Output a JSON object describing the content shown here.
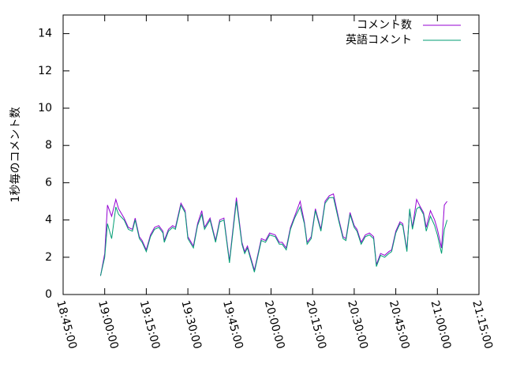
{
  "chart_data": {
    "type": "line",
    "y_label": "1秒毎のコメント数",
    "x": [
      "18:58:30",
      "19:00:00",
      "19:01:00",
      "19:02:30",
      "19:04:00",
      "19:05:00",
      "19:07:00",
      "19:08:30",
      "19:10:00",
      "19:11:00",
      "19:12:30",
      "19:13:30",
      "19:15:00",
      "19:16:30",
      "19:18:00",
      "19:19:30",
      "19:21:00",
      "19:21:30",
      "19:23:00",
      "19:24:30",
      "19:25:30",
      "19:27:30",
      "19:29:00",
      "19:30:00",
      "19:32:00",
      "19:33:30",
      "19:35:00",
      "19:36:00",
      "19:38:00",
      "19:40:00",
      "19:41:30",
      "19:43:00",
      "19:45:00",
      "19:47:30",
      "19:49:30",
      "19:50:30",
      "19:51:30",
      "19:54:00",
      "19:56:30",
      "19:58:00",
      "19:59:30",
      "20:01:30",
      "20:03:00",
      "20:04:00",
      "20:05:30",
      "20:07:00",
      "20:08:30",
      "20:10:30",
      "20:12:00",
      "20:13:00",
      "20:14:30",
      "20:16:00",
      "20:18:00",
      "20:19:30",
      "20:21:00",
      "20:22:30",
      "20:24:30",
      "20:26:00",
      "20:27:00",
      "20:28:30",
      "20:30:00",
      "20:31:00",
      "20:32:30",
      "20:34:00",
      "20:35:30",
      "20:37:00",
      "20:38:00",
      "20:39:30",
      "20:41:00",
      "20:42:30",
      "20:43:30",
      "20:45:00",
      "20:46:30",
      "20:47:30",
      "20:49:00",
      "20:50:00",
      "20:51:00",
      "20:52:30",
      "20:53:30",
      "20:55:00",
      "20:56:00",
      "20:57:30",
      "20:59:00",
      "21:00:00",
      "21:01:30",
      "21:02:30",
      "21:03:30"
    ],
    "series": [
      {
        "name": "コメント数",
        "color": "#9400d3",
        "values": [
          1.0,
          2.2,
          4.8,
          4.2,
          5.1,
          4.6,
          4.1,
          3.6,
          3.5,
          4.1,
          3.1,
          2.9,
          2.4,
          3.2,
          3.6,
          3.7,
          3.4,
          2.9,
          3.5,
          3.7,
          3.6,
          4.9,
          4.5,
          3.1,
          2.6,
          3.8,
          4.5,
          3.6,
          4.1,
          2.9,
          4.0,
          4.1,
          1.8,
          5.2,
          2.8,
          2.3,
          2.6,
          1.3,
          3.0,
          2.9,
          3.3,
          3.2,
          2.8,
          2.8,
          2.5,
          3.6,
          4.2,
          5.0,
          3.9,
          2.8,
          3.1,
          4.6,
          3.5,
          5.0,
          5.3,
          5.4,
          4.0,
          3.1,
          3.0,
          4.4,
          3.7,
          3.5,
          2.8,
          3.2,
          3.3,
          3.1,
          1.6,
          2.2,
          2.1,
          2.3,
          2.4,
          3.4,
          3.9,
          3.8,
          2.4,
          4.5,
          3.6,
          5.1,
          4.8,
          4.4,
          3.6,
          4.5,
          4.0,
          3.5,
          2.5,
          4.8,
          5.0
        ]
      },
      {
        "name": "英語コメント",
        "color": "#009e73",
        "values": [
          1.0,
          2.0,
          3.8,
          3.0,
          4.7,
          4.3,
          4.0,
          3.5,
          3.4,
          4.0,
          3.0,
          2.8,
          2.3,
          3.1,
          3.5,
          3.6,
          3.3,
          2.8,
          3.4,
          3.6,
          3.5,
          4.8,
          4.4,
          3.0,
          2.5,
          3.7,
          4.3,
          3.5,
          4.0,
          2.8,
          3.9,
          4.0,
          1.7,
          5.0,
          2.7,
          2.2,
          2.5,
          1.2,
          2.9,
          2.8,
          3.2,
          3.1,
          2.7,
          2.7,
          2.4,
          3.5,
          4.1,
          4.7,
          3.8,
          2.7,
          3.0,
          4.5,
          3.4,
          4.9,
          5.2,
          5.2,
          3.9,
          3.0,
          2.9,
          4.3,
          3.6,
          3.4,
          2.7,
          3.1,
          3.2,
          3.0,
          1.5,
          2.1,
          2.0,
          2.2,
          2.3,
          3.3,
          3.8,
          3.7,
          2.3,
          4.6,
          3.5,
          4.6,
          4.7,
          4.3,
          3.4,
          4.2,
          3.7,
          3.2,
          2.2,
          3.5,
          4.0
        ]
      }
    ],
    "xlim": [
      "18:45:00",
      "21:15:00"
    ],
    "xticks": [
      "18:45:00",
      "19:00:00",
      "19:15:00",
      "19:30:00",
      "19:45:00",
      "20:00:00",
      "20:15:00",
      "20:30:00",
      "20:45:00",
      "21:00:00",
      "21:15:00"
    ],
    "ylim": [
      0,
      15
    ],
    "yticks": [
      0,
      2,
      4,
      6,
      8,
      10,
      12,
      14
    ],
    "legend": "top-right"
  }
}
